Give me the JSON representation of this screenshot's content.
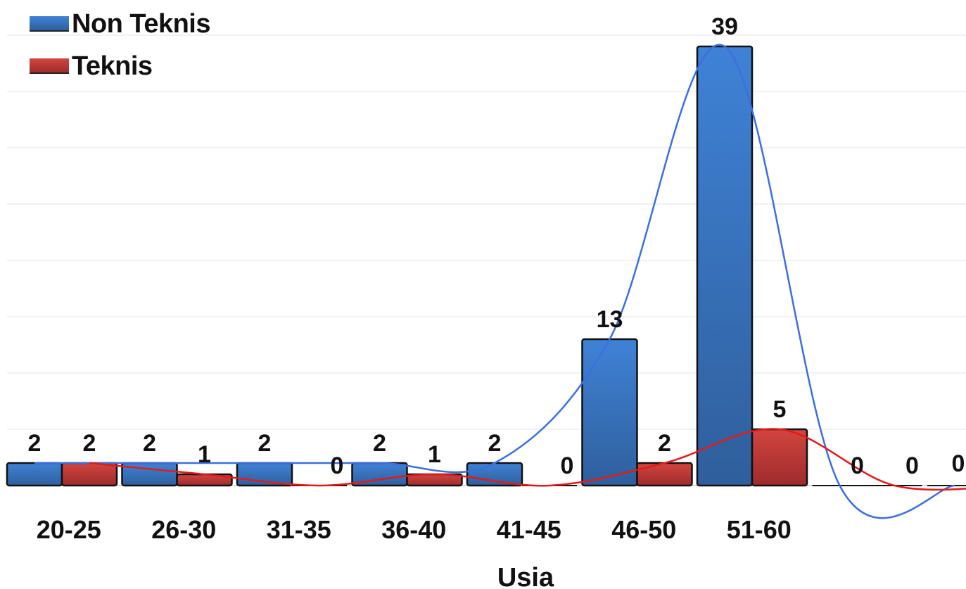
{
  "chart_data": {
    "type": "bar",
    "title": "",
    "xlabel": "Usia",
    "ylabel": "",
    "categories": [
      "20-25",
      "26-30",
      "31-35",
      "36-40",
      "41-45",
      "46-50",
      "51-60",
      "",
      ""
    ],
    "series": [
      {
        "name": "Non Teknis",
        "color": "#3a78c6",
        "values": [
          2,
          2,
          2,
          2,
          2,
          13,
          39,
          0,
          0
        ],
        "labels": [
          "2",
          "2",
          "2",
          "2",
          "2",
          "13",
          "39",
          "0",
          "0"
        ]
      },
      {
        "name": "Teknis",
        "color": "#c0393b",
        "values": [
          2,
          1,
          0,
          1,
          0,
          2,
          5,
          0,
          0
        ],
        "labels": [
          "2",
          "1",
          "0",
          "1",
          "0",
          "2",
          "5",
          "0",
          "0"
        ]
      }
    ],
    "extra_label": "0",
    "ylim": [
      0,
      40
    ],
    "grid": true,
    "legend_position": "top-left",
    "trendlines": [
      {
        "series": "Non Teknis",
        "color": "#3b6fe0"
      },
      {
        "series": "Teknis",
        "color": "#e41a1a"
      }
    ]
  }
}
